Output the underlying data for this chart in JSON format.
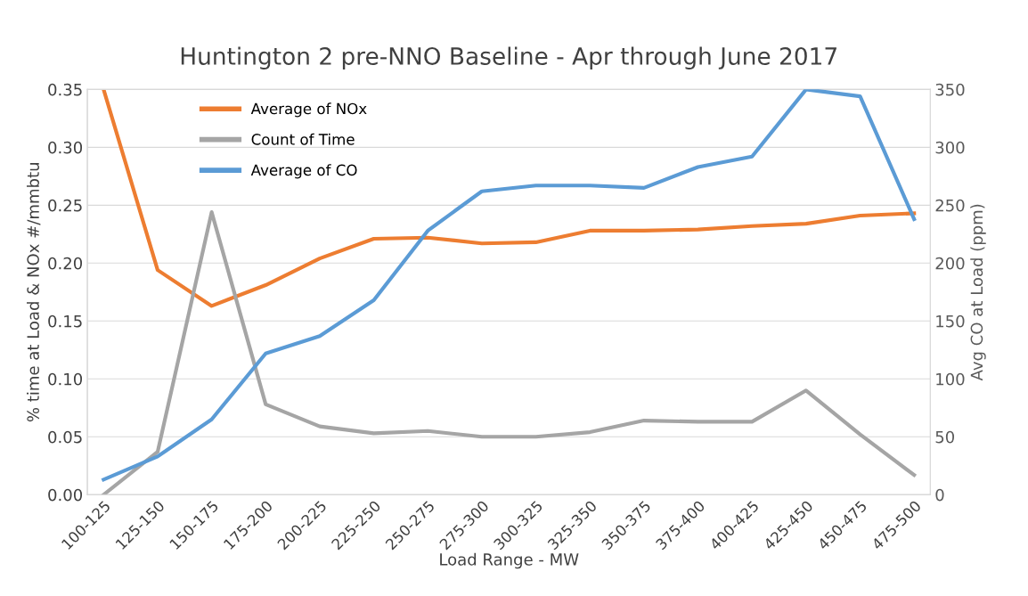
{
  "chart_data": {
    "type": "line",
    "title": "Huntington 2 pre-NNO Baseline - Apr through June 2017",
    "xlabel": "Load Range - MW",
    "ylabel": "% time at Load & NOx #/mmbtu",
    "y2label": "Avg CO at Load (ppm)",
    "categories": [
      "100-125",
      "125-150",
      "150-175",
      "175-200",
      "200-225",
      "225-250",
      "250-275",
      "275-300",
      "300-325",
      "325-350",
      "350-375",
      "375-400",
      "400-425",
      "425-450",
      "450-475",
      "475-500"
    ],
    "series": [
      {
        "name": "Average of NOx",
        "color": "#ed7d31",
        "values": [
          0.35,
          0.194,
          0.163,
          0.181,
          0.204,
          0.221,
          0.222,
          0.217,
          0.218,
          0.228,
          0.228,
          0.229,
          0.232,
          0.234,
          0.241,
          0.243
        ]
      },
      {
        "name": "Count of Time",
        "color": "#a5a5a5",
        "values": [
          0.0,
          0.037,
          0.244,
          0.078,
          0.059,
          0.053,
          0.055,
          0.05,
          0.05,
          0.054,
          0.064,
          0.063,
          0.063,
          0.09,
          0.052,
          0.017
        ]
      },
      {
        "name": "Average of CO",
        "color": "#5b9bd5",
        "axis": "y2",
        "values": [
          13,
          33,
          65,
          122,
          137,
          168,
          228,
          262,
          267,
          267,
          265,
          283,
          292,
          350,
          344,
          238
        ]
      }
    ],
    "ylim": [
      0,
      0.35
    ],
    "yticks": [
      {
        "value": 0,
        "label": "0.00"
      },
      {
        "value": 0.05,
        "label": "0.05"
      },
      {
        "value": 0.1,
        "label": "0.10"
      },
      {
        "value": 0.15,
        "label": "0.15"
      },
      {
        "value": 0.2,
        "label": "0.20"
      },
      {
        "value": 0.25,
        "label": "0.25"
      },
      {
        "value": 0.3,
        "label": "0.30"
      },
      {
        "value": 0.35,
        "label": "0.35"
      }
    ],
    "y2lim": [
      0,
      350
    ],
    "y2ticks": [
      0,
      50,
      100,
      150,
      200,
      250,
      300,
      350
    ],
    "grid": "y",
    "legend": "top left",
    "marker": "none",
    "line_style": "solid"
  }
}
